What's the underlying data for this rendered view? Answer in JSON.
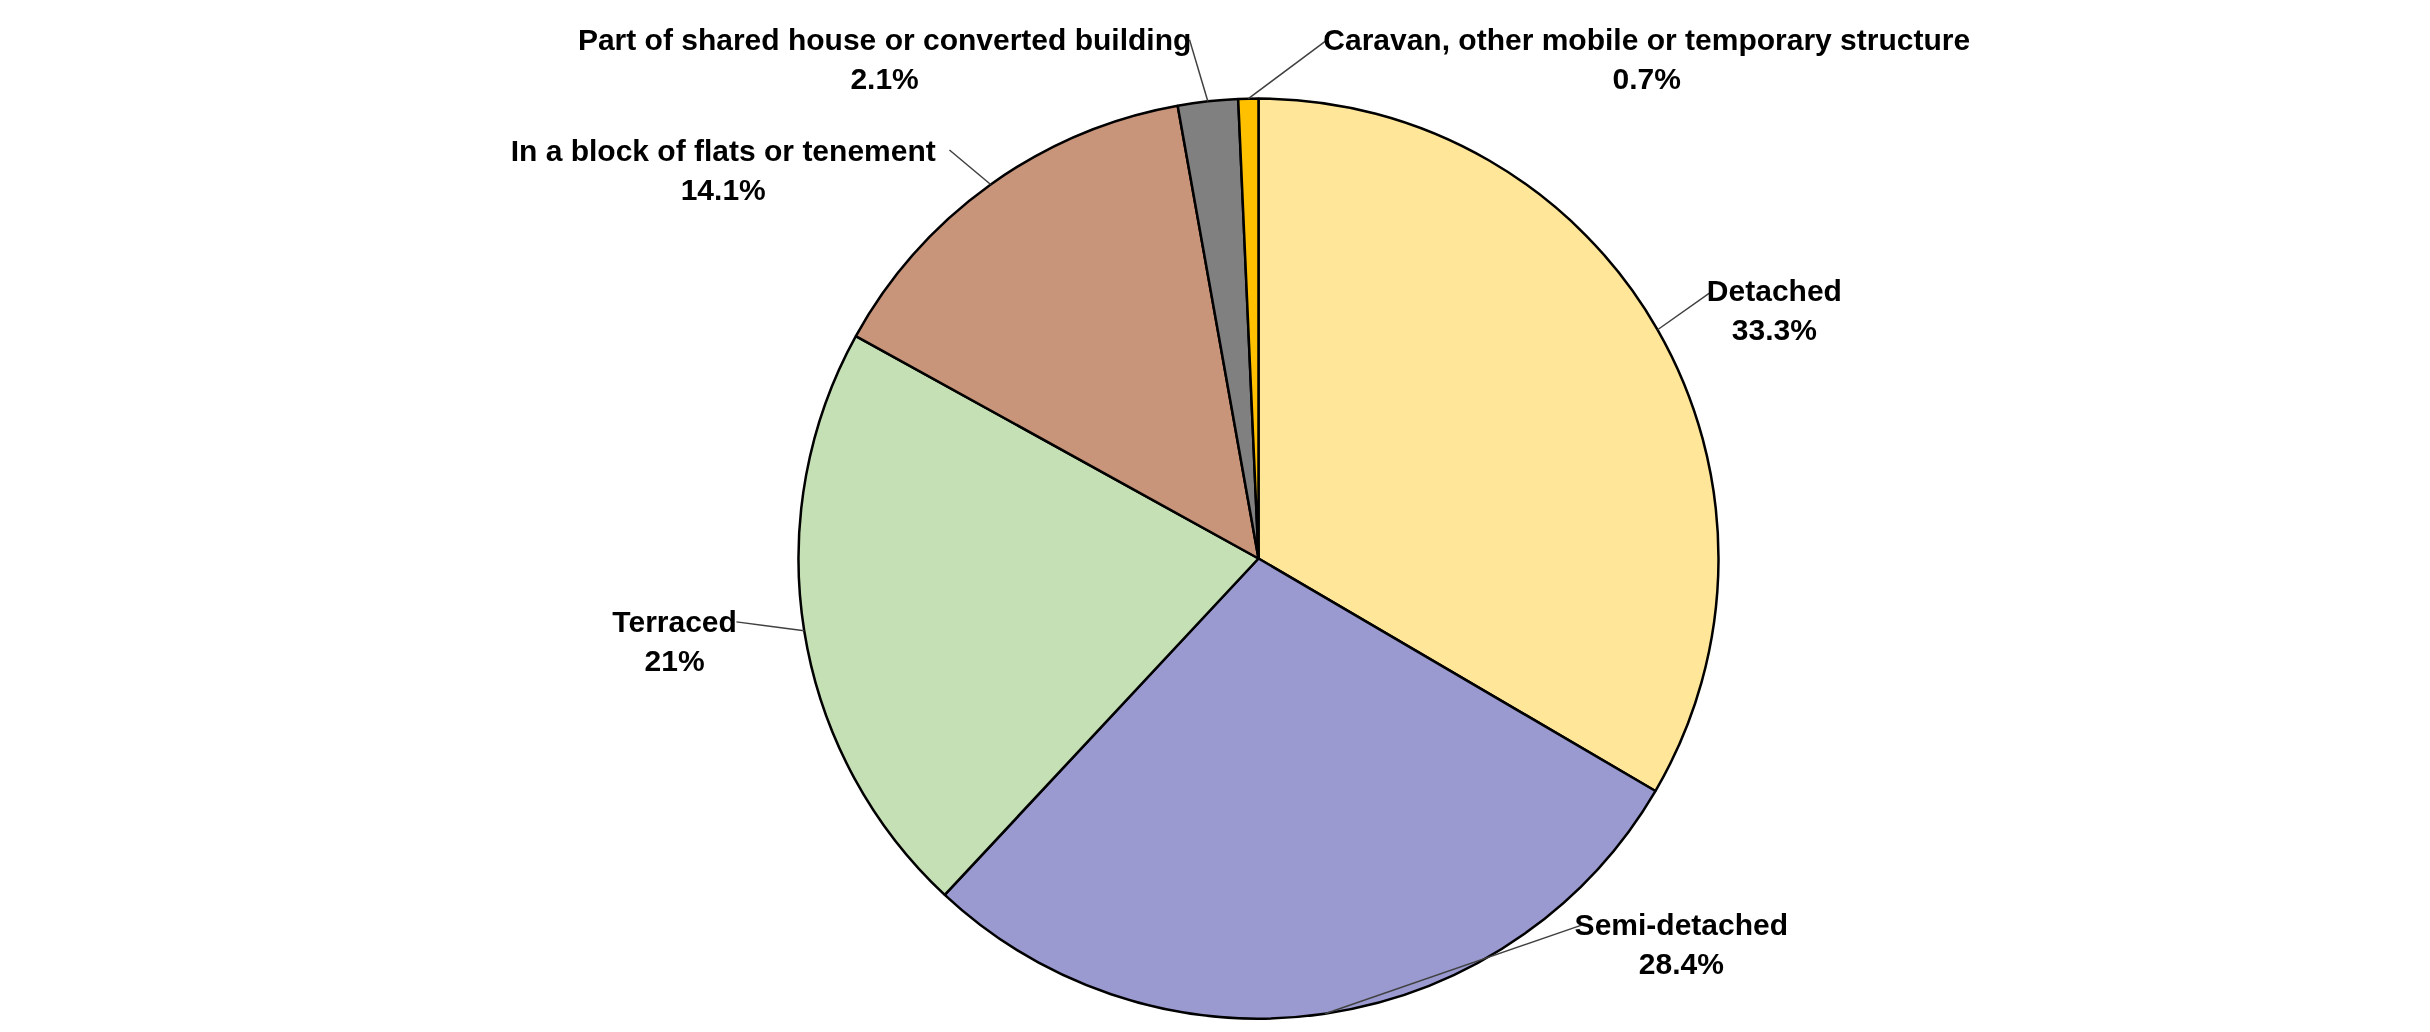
{
  "chart_data": {
    "type": "pie",
    "categories": [
      "Detached",
      "Semi-detached",
      "Terraced",
      "In a block of flats or tenement",
      "Part of shared house or converted building",
      "Caravan, other mobile or temporary structure"
    ],
    "values": [
      33.3,
      28.4,
      21,
      14.1,
      2.1,
      0.7
    ],
    "value_labels": [
      "33.3%",
      "28.4%",
      "21%",
      "14.1%",
      "2.1%",
      "0.7%"
    ],
    "colors": [
      "#ffe699",
      "#9a9ad0",
      "#c5e0b4",
      "#c8957a",
      "#808080",
      "#ffc000"
    ]
  }
}
